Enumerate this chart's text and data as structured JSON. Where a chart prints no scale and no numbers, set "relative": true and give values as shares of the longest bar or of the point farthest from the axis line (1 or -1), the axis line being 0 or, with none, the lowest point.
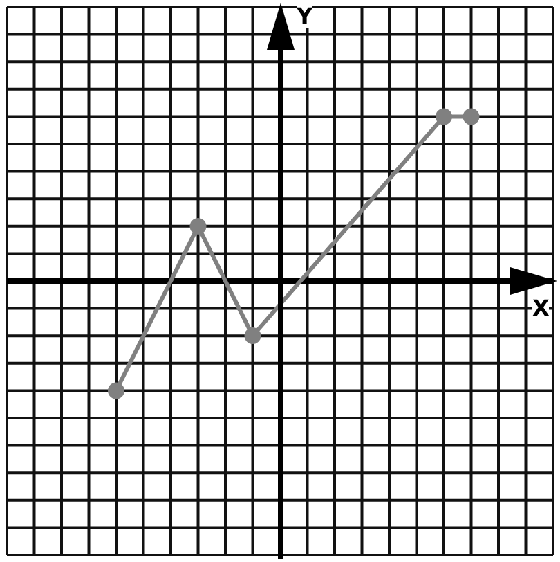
{
  "chart_data": {
    "type": "line",
    "relative": true,
    "xlabel": "X",
    "ylabel": "Y",
    "categories": [
      null,
      null,
      null,
      null,
      null,
      null,
      null,
      null,
      null,
      null,
      null,
      null,
      null,
      null,
      null,
      null,
      null,
      null,
      null,
      null,
      null
    ],
    "series": [
      {
        "color": "#808080",
        "values": [
          null,
          null,
          null,
          null,
          -0.667,
          null,
          null,
          0.333,
          null,
          -0.333,
          null,
          null,
          null,
          null,
          null,
          null,
          1,
          1,
          null,
          null,
          null
        ]
      }
    ],
    "grid": true,
    "marker": "circle",
    "line_style": "solid"
  }
}
